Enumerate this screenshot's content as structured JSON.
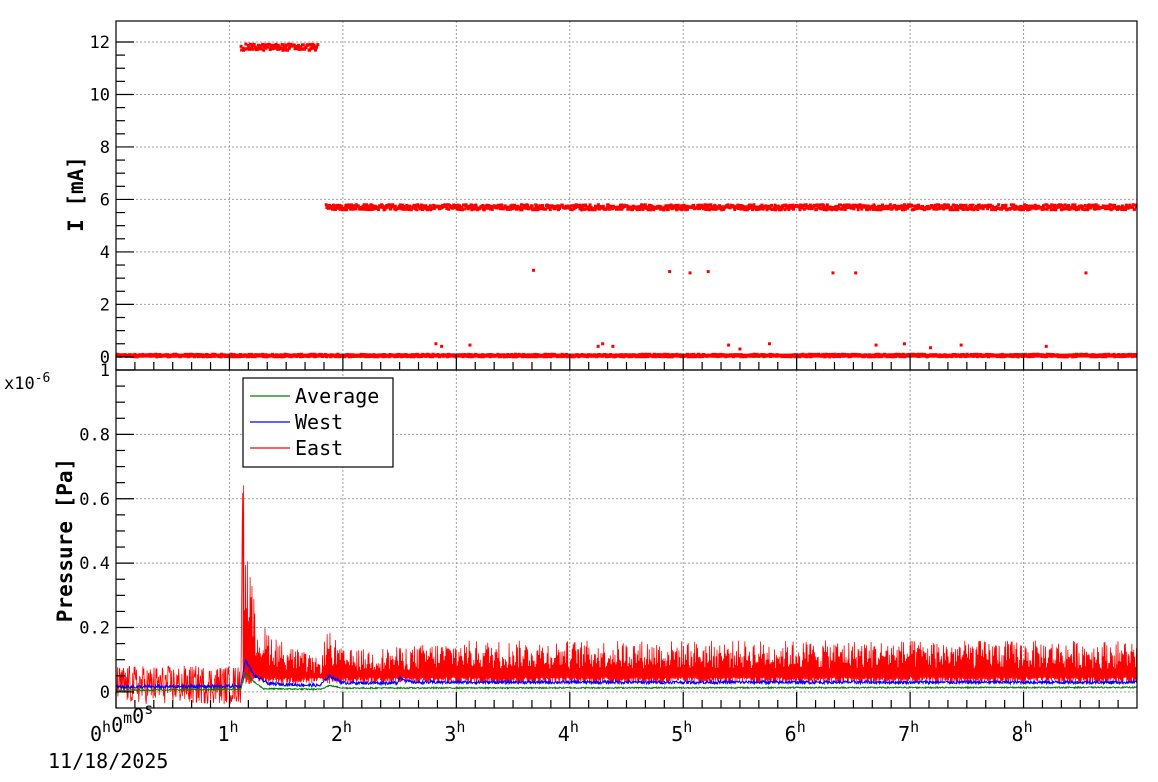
{
  "chart_data": [
    {
      "type": "scatter",
      "panel": "top",
      "title": "",
      "xlabel": "",
      "ylabel": "I [mA]",
      "xlim_hours": [
        0,
        9.0
      ],
      "ylim": [
        -0.5,
        12.8
      ],
      "yticks": [
        0,
        2,
        4,
        6,
        8,
        10,
        12
      ],
      "ytick_labels": [
        "0",
        "2",
        "4",
        "6",
        "8",
        "10",
        "12"
      ],
      "grid": true,
      "series": [
        {
          "name": "",
          "color": "#ff0000",
          "segments": [
            {
              "x_start": 0.0,
              "x_end": 9.0,
              "level": 0.05,
              "noise": 0.05
            },
            {
              "x_start": 1.1,
              "x_end": 1.78,
              "level": 11.8,
              "noise": 0.12
            },
            {
              "x_start": 1.85,
              "x_end": 9.0,
              "level": 5.7,
              "noise": 0.1
            }
          ],
          "outliers": [
            {
              "x": 3.68,
              "y": 3.3
            },
            {
              "x": 4.88,
              "y": 3.25
            },
            {
              "x": 5.06,
              "y": 3.2
            },
            {
              "x": 5.22,
              "y": 3.25
            },
            {
              "x": 6.32,
              "y": 3.2
            },
            {
              "x": 6.52,
              "y": 3.2
            },
            {
              "x": 8.55,
              "y": 3.2
            },
            {
              "x": 2.82,
              "y": 0.5
            },
            {
              "x": 2.87,
              "y": 0.4
            },
            {
              "x": 3.12,
              "y": 0.45
            },
            {
              "x": 4.25,
              "y": 0.4
            },
            {
              "x": 4.29,
              "y": 0.5
            },
            {
              "x": 4.38,
              "y": 0.4
            },
            {
              "x": 5.4,
              "y": 0.45
            },
            {
              "x": 5.5,
              "y": 0.3
            },
            {
              "x": 5.76,
              "y": 0.5
            },
            {
              "x": 6.7,
              "y": 0.45
            },
            {
              "x": 6.95,
              "y": 0.5
            },
            {
              "x": 7.18,
              "y": 0.35
            },
            {
              "x": 7.45,
              "y": 0.45
            },
            {
              "x": 8.2,
              "y": 0.4
            }
          ]
        }
      ]
    },
    {
      "type": "line",
      "panel": "bottom",
      "title": "",
      "xlabel": "",
      "ylabel": "Pressure [Pa]",
      "y_multiplier": "x10",
      "y_multiplier_exp": "-6",
      "xlim_hours": [
        0,
        9.0
      ],
      "ylim": [
        -0.05,
        1.0
      ],
      "yticks": [
        0,
        0.2,
        0.4,
        0.6,
        0.8,
        1
      ],
      "ytick_labels": [
        "0",
        "0.2",
        "0.4",
        "0.6",
        "0.8",
        "1"
      ],
      "grid": true,
      "legend_placement": "top-left",
      "series": [
        {
          "name": "Average",
          "color": "#008000",
          "profile": [
            [
              0,
              0.005
            ],
            [
              1.1,
              0.008
            ],
            [
              1.14,
              0.06
            ],
            [
              1.22,
              0.03
            ],
            [
              1.3,
              0.01
            ],
            [
              1.8,
              0.008
            ],
            [
              1.88,
              0.02
            ],
            [
              2.0,
              0.012
            ],
            [
              9.0,
              0.014
            ]
          ],
          "fluct": 0.004
        },
        {
          "name": "West",
          "color": "#0000ff",
          "profile": [
            [
              0,
              0.015
            ],
            [
              1.1,
              0.018
            ],
            [
              1.14,
              0.1
            ],
            [
              1.22,
              0.05
            ],
            [
              1.35,
              0.025
            ],
            [
              1.8,
              0.02
            ],
            [
              1.88,
              0.05
            ],
            [
              2.0,
              0.028
            ],
            [
              2.48,
              0.028
            ],
            [
              2.5,
              0.045
            ],
            [
              2.6,
              0.03
            ],
            [
              9.0,
              0.03
            ]
          ],
          "fluct": 0.01
        },
        {
          "name": "East",
          "color": "#ff0000",
          "profile": [
            [
              0,
              0.022
            ],
            [
              1.1,
              0.022
            ],
            [
              1.12,
              0.76
            ],
            [
              1.16,
              0.42
            ],
            [
              1.25,
              0.22
            ],
            [
              1.5,
              0.15
            ],
            [
              1.8,
              0.1
            ],
            [
              1.86,
              0.2
            ],
            [
              2.0,
              0.13
            ],
            [
              2.5,
              0.14
            ],
            [
              3.0,
              0.16
            ],
            [
              9.0,
              0.16
            ]
          ],
          "floor": 0.025,
          "fluct": 0.12
        }
      ]
    }
  ],
  "x_axis": {
    "ticks": [
      {
        "hours": 0,
        "main": "0",
        "parts": [
          [
            "0",
            "h"
          ],
          [
            "0",
            "m"
          ],
          [
            "0",
            "s"
          ]
        ]
      },
      {
        "hours": 1,
        "parts": [
          [
            "1",
            "h"
          ]
        ]
      },
      {
        "hours": 2,
        "parts": [
          [
            "2",
            "h"
          ]
        ]
      },
      {
        "hours": 3,
        "parts": [
          [
            "3",
            "h"
          ]
        ]
      },
      {
        "hours": 4,
        "parts": [
          [
            "4",
            "h"
          ]
        ]
      },
      {
        "hours": 5,
        "parts": [
          [
            "5",
            "h"
          ]
        ]
      },
      {
        "hours": 6,
        "parts": [
          [
            "6",
            "h"
          ]
        ]
      },
      {
        "hours": 7,
        "parts": [
          [
            "7",
            "h"
          ]
        ]
      },
      {
        "hours": 8,
        "parts": [
          [
            "8",
            "h"
          ]
        ]
      }
    ],
    "date": "11/18/2025"
  }
}
